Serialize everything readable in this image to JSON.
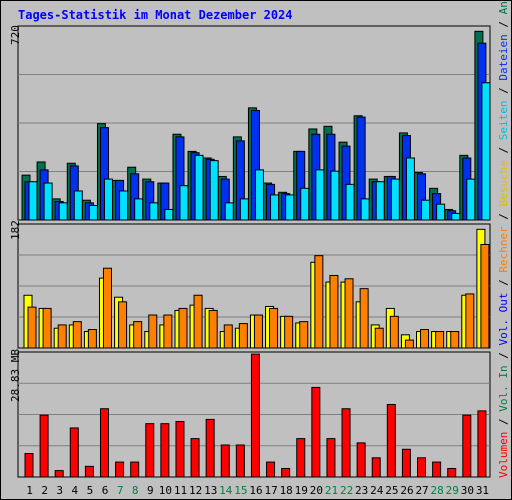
{
  "title": "Tages-Statistik im Monat Dezember 2024",
  "colors": {
    "anfragen": "#007050",
    "dateien": "#0030f0",
    "seiten": "#00e0ff",
    "besuche": "#ffff00",
    "rechner": "#ff8000",
    "kbytes": "#ff0000",
    "weekend_label": "#008040",
    "weekday_label": "#000000",
    "volout": "#0000ff",
    "volin": "#008040"
  },
  "right_labels": {
    "top": [
      "Anfragen",
      "Dateien",
      "Seiten",
      "Besuche"
    ],
    "middle": [
      "Rechner",
      "Vol. Out",
      "Vol. In"
    ],
    "bottom": [
      "Volumen"
    ]
  },
  "chart_data": [
    {
      "type": "bar",
      "ymax_label": "720",
      "ylim": [
        0,
        720
      ],
      "categories": [
        "1",
        "2",
        "3",
        "4",
        "5",
        "6",
        "7",
        "8",
        "9",
        "10",
        "11",
        "12",
        "13",
        "14",
        "15",
        "16",
        "17",
        "18",
        "19",
        "20",
        "21",
        "22",
        "23",
        "24",
        "25",
        "26",
        "27",
        "28",
        "29",
        "30",
        "31"
      ],
      "weekend": [
        false,
        false,
        false,
        false,
        false,
        false,
        true,
        true,
        false,
        false,
        false,
        false,
        false,
        true,
        true,
        false,
        false,
        false,
        false,
        false,
        true,
        true,
        false,
        false,
        false,
        false,
        false,
        true,
        true,
        false,
        false
      ],
      "series": [
        {
          "name": "Anfragen",
          "values": [
            170,
            220,
            80,
            215,
            75,
            365,
            150,
            200,
            155,
            140,
            325,
            260,
            235,
            165,
            315,
            425,
            140,
            105,
            260,
            345,
            355,
            295,
            395,
            155,
            165,
            330,
            180,
            120,
            40,
            245,
            715
          ]
        },
        {
          "name": "Dateien",
          "values": [
            145,
            190,
            70,
            205,
            65,
            350,
            150,
            175,
            145,
            140,
            315,
            255,
            230,
            155,
            300,
            415,
            135,
            100,
            260,
            325,
            325,
            280,
            390,
            145,
            165,
            320,
            175,
            100,
            35,
            235,
            670
          ]
        },
        {
          "name": "Seiten",
          "values": [
            145,
            140,
            65,
            110,
            55,
            155,
            110,
            80,
            65,
            40,
            130,
            245,
            225,
            65,
            80,
            190,
            95,
            95,
            120,
            190,
            185,
            135,
            80,
            145,
            155,
            235,
            75,
            60,
            25,
            155,
            520
          ]
        }
      ]
    },
    {
      "type": "bar",
      "ymax_label": "182",
      "ylim": [
        0,
        182
      ],
      "categories": [
        "1",
        "2",
        "3",
        "4",
        "5",
        "6",
        "7",
        "8",
        "9",
        "10",
        "11",
        "12",
        "13",
        "14",
        "15",
        "16",
        "17",
        "18",
        "19",
        "20",
        "21",
        "22",
        "23",
        "24",
        "25",
        "26",
        "27",
        "28",
        "29",
        "30",
        "31"
      ],
      "series": [
        {
          "name": "Besuche",
          "values": [
            80,
            60,
            30,
            35,
            25,
            106,
            77,
            35,
            25,
            35,
            57,
            65,
            60,
            25,
            30,
            50,
            63,
            48,
            38,
            130,
            100,
            100,
            70,
            35,
            60,
            20,
            25,
            25,
            25,
            80,
            180
          ]
        },
        {
          "name": "Rechner",
          "values": [
            62,
            60,
            35,
            40,
            28,
            121,
            70,
            40,
            50,
            50,
            60,
            80,
            57,
            35,
            37,
            50,
            60,
            48,
            40,
            140,
            110,
            105,
            90,
            30,
            48,
            12,
            28,
            25,
            25,
            82,
            157
          ]
        }
      ]
    },
    {
      "type": "bar",
      "ymax_label": "28.83 MB",
      "ylim": [
        0,
        28.83
      ],
      "categories": [
        "1",
        "2",
        "3",
        "4",
        "5",
        "6",
        "7",
        "8",
        "9",
        "10",
        "11",
        "12",
        "13",
        "14",
        "15",
        "16",
        "17",
        "18",
        "19",
        "20",
        "21",
        "22",
        "23",
        "24",
        "25",
        "26",
        "27",
        "28",
        "29",
        "30",
        "31"
      ],
      "series": [
        {
          "name": "Volumen",
          "values": [
            5.5,
            14.5,
            1.5,
            11.5,
            2.5,
            16,
            3.5,
            3.5,
            12.5,
            12.5,
            13,
            9,
            13.5,
            7.5,
            7.5,
            28.8,
            3.5,
            2,
            9,
            21,
            9,
            16,
            8,
            4.5,
            17,
            6.5,
            4.5,
            3.5,
            2,
            14.5,
            15.5
          ]
        }
      ]
    }
  ]
}
